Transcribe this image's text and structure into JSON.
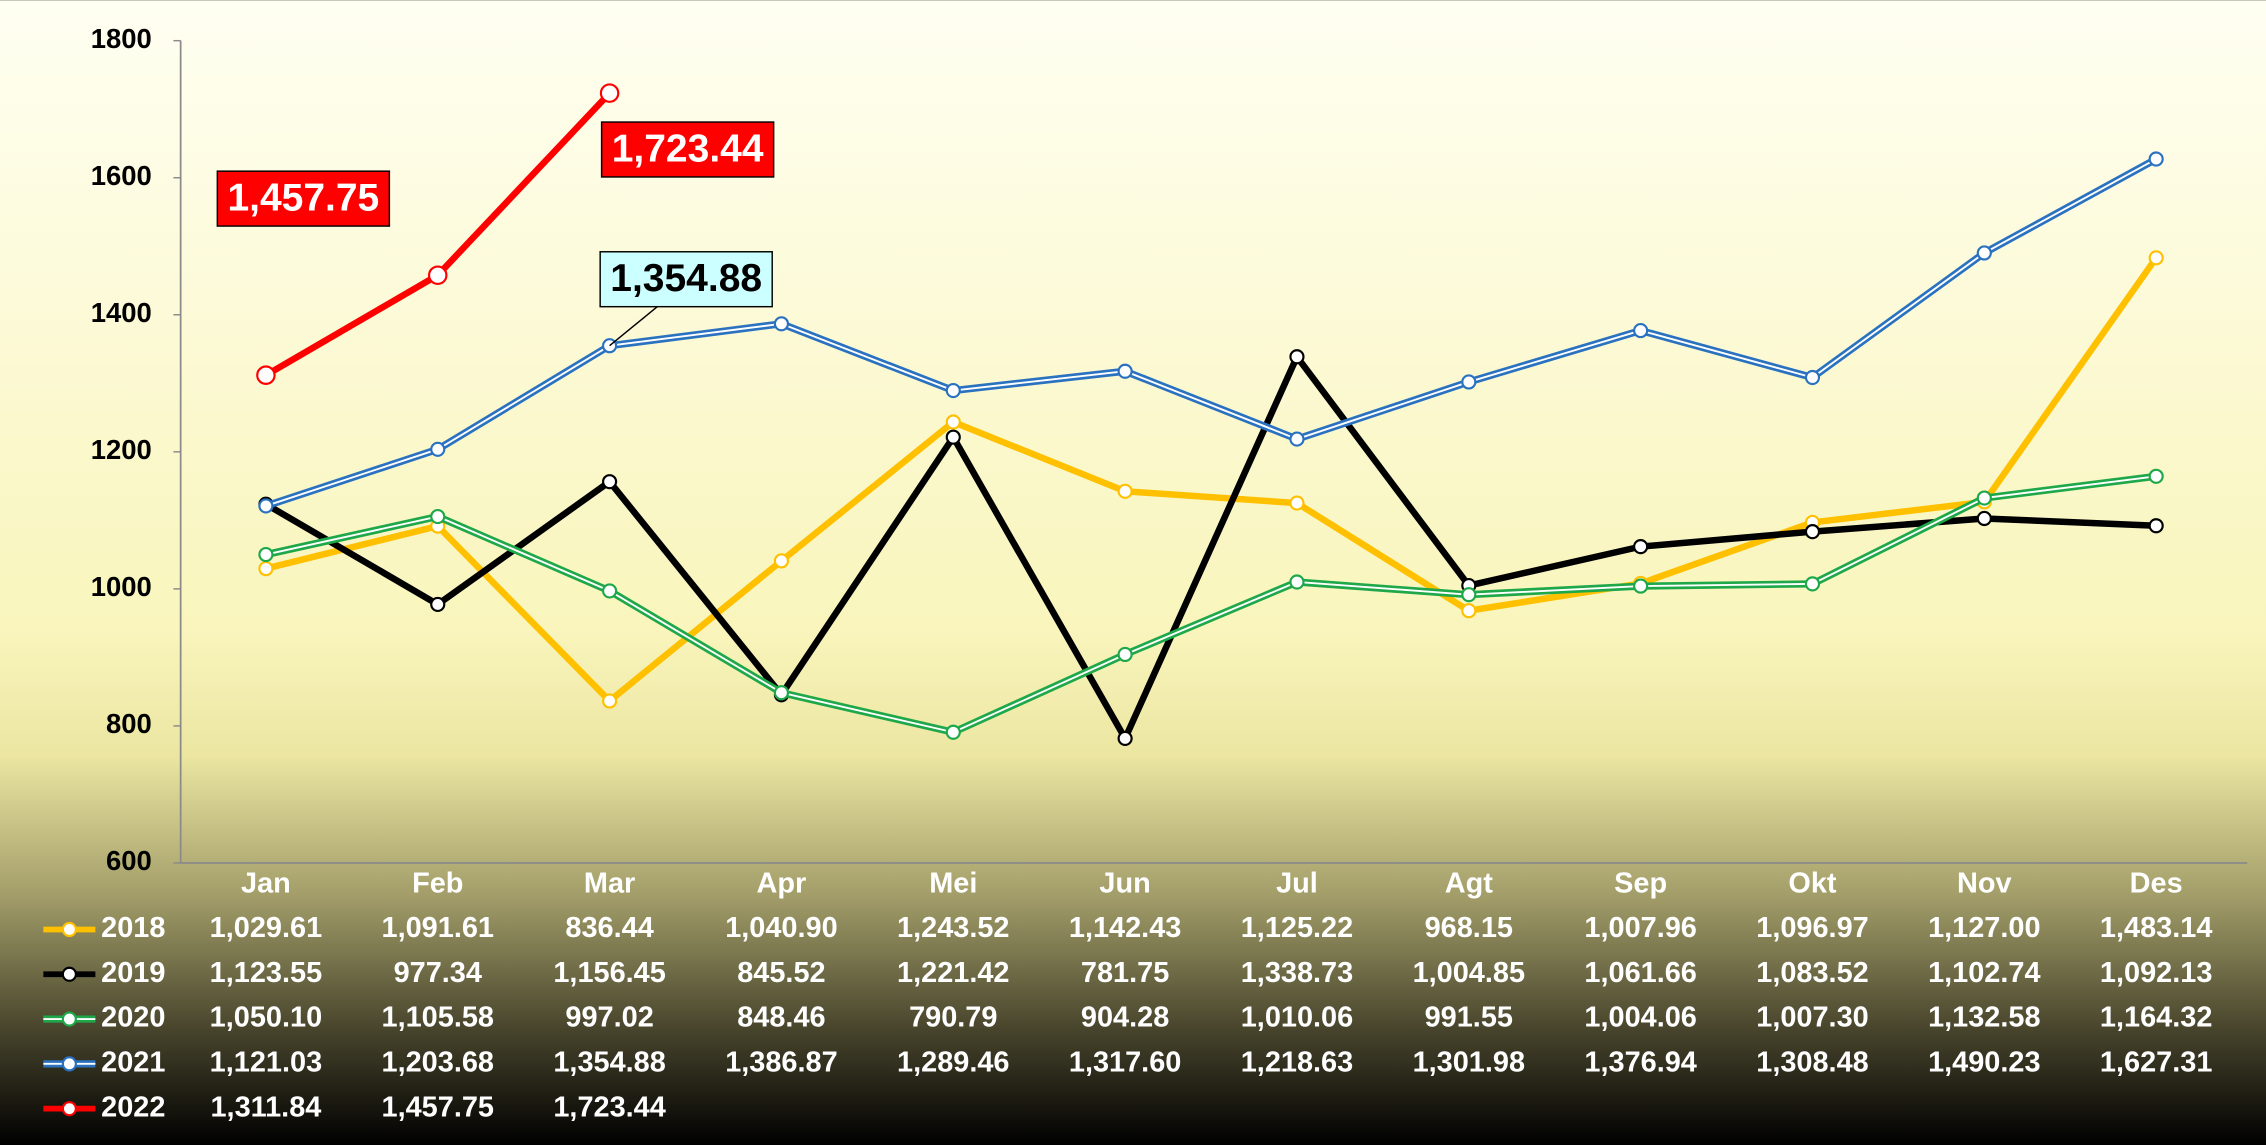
{
  "chart_data": {
    "type": "line",
    "categories": [
      "Jan",
      "Feb",
      "Mar",
      "Apr",
      "Mei",
      "Jun",
      "Jul",
      "Agt",
      "Sep",
      "Okt",
      "Nov",
      "Des"
    ],
    "ylim": [
      600,
      1800
    ],
    "yticks": [
      600,
      800,
      1000,
      1200,
      1400,
      1600,
      1800
    ],
    "grid": false,
    "series": [
      {
        "name": "2018",
        "color": "#ffc000",
        "style": "single",
        "values": [
          1029.61,
          1091.61,
          836.44,
          1040.9,
          1243.52,
          1142.43,
          1125.22,
          968.15,
          1007.96,
          1096.97,
          1127.0,
          1483.14
        ],
        "value_labels": [
          "1,029.61",
          "1,091.61",
          "836.44",
          "1,040.90",
          "1,243.52",
          "1,142.43",
          "1,125.22",
          "968.15",
          "1,007.96",
          "1,096.97",
          "1,127.00",
          "1,483.14"
        ]
      },
      {
        "name": "2019",
        "color": "#000000",
        "style": "single",
        "values": [
          1123.55,
          977.34,
          1156.45,
          845.52,
          1221.42,
          781.75,
          1338.73,
          1004.85,
          1061.66,
          1083.52,
          1102.74,
          1092.13
        ],
        "value_labels": [
          "1,123.55",
          "977.34",
          "1,156.45",
          "845.52",
          "1,221.42",
          "781.75",
          "1,338.73",
          "1,004.85",
          "1,061.66",
          "1,083.52",
          "1,102.74",
          "1,092.13"
        ]
      },
      {
        "name": "2020",
        "color": "#1fa84a",
        "style": "double",
        "values": [
          1050.1,
          1105.58,
          997.02,
          848.46,
          790.79,
          904.28,
          1010.06,
          991.55,
          1004.06,
          1007.3,
          1132.58,
          1164.32
        ],
        "value_labels": [
          "1,050.10",
          "1,105.58",
          "997.02",
          "848.46",
          "790.79",
          "904.28",
          "1,010.06",
          "991.55",
          "1,004.06",
          "1,007.30",
          "1,132.58",
          "1,164.32"
        ]
      },
      {
        "name": "2021",
        "color": "#2a72c0",
        "style": "double",
        "values": [
          1121.03,
          1203.68,
          1354.88,
          1386.87,
          1289.46,
          1317.6,
          1218.63,
          1301.98,
          1376.94,
          1308.48,
          1490.23,
          1627.31
        ],
        "value_labels": [
          "1,121.03",
          "1,203.68",
          "1,354.88",
          "1,386.87",
          "1,289.46",
          "1,317.60",
          "1,218.63",
          "1,301.98",
          "1,376.94",
          "1,308.48",
          "1,490.23",
          "1,627.31"
        ]
      },
      {
        "name": "2022",
        "color": "#ff0000",
        "style": "single",
        "values": [
          1311.84,
          1457.75,
          1723.44,
          null,
          null,
          null,
          null,
          null,
          null,
          null,
          null,
          null
        ],
        "value_labels": [
          "1,311.84",
          "1,457.75",
          "1,723.44",
          null,
          null,
          null,
          null,
          null,
          null,
          null,
          null,
          null
        ]
      }
    ],
    "annotations": [
      {
        "text": "1,457.75",
        "series": "2022",
        "category": "Feb",
        "fill": "#ff0000",
        "text_color": "#ffffff"
      },
      {
        "text": "1,723.44",
        "series": "2022",
        "category": "Mar",
        "fill": "#ff0000",
        "text_color": "#ffffff"
      },
      {
        "text": "1,354.88",
        "series": "2021",
        "category": "Mar",
        "fill": "#ccffff",
        "text_color": "#000000"
      }
    ]
  }
}
